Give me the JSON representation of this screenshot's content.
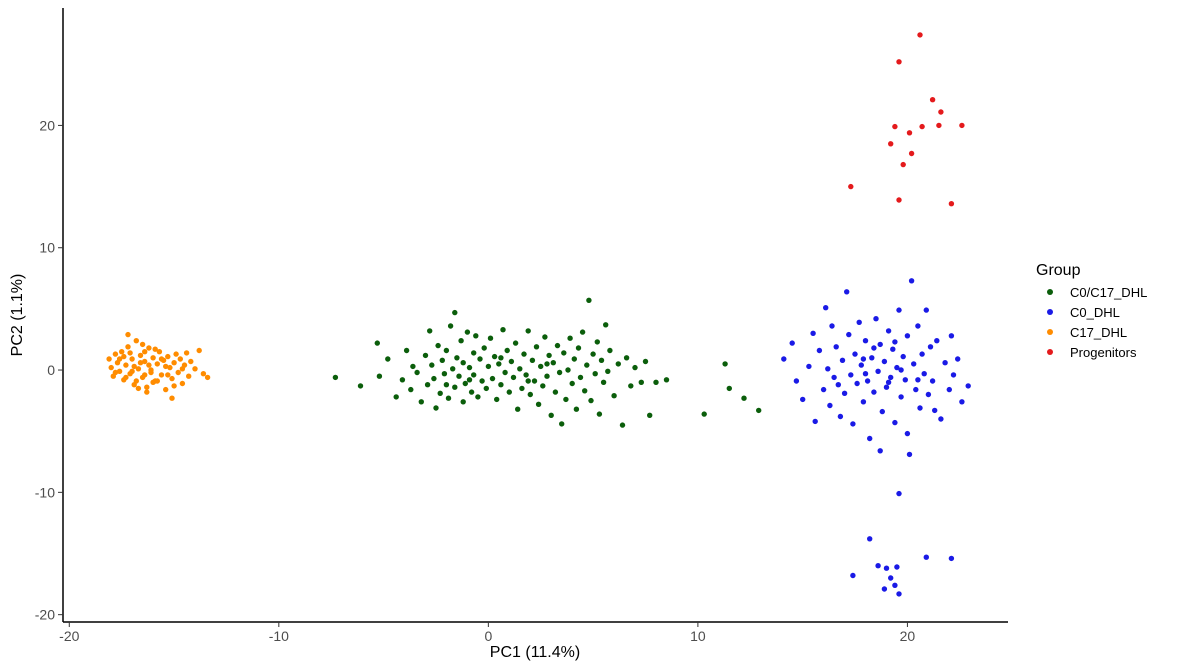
{
  "chart_data": {
    "type": "scatter",
    "xlabel": "PC1 (11.4%)",
    "ylabel": "PC2 (1.1%)",
    "xlim": [
      -20.3,
      24.8
    ],
    "ylim": [
      -20.6,
      29.6
    ],
    "xticks": [
      -20,
      -10,
      0,
      10,
      20
    ],
    "yticks": [
      -20,
      -10,
      0,
      10,
      20
    ],
    "grid": false,
    "legend": {
      "title": "Group",
      "placement": "right",
      "entries": [
        "C0/C17_DHL",
        "C0_DHL",
        "C17_DHL",
        "Progenitors"
      ]
    },
    "series": [
      {
        "name": "C0/C17_DHL",
        "color": "#0b5e0b",
        "points": [
          [
            -7.3,
            -0.6
          ],
          [
            -6.1,
            -1.3
          ],
          [
            -5.3,
            2.2
          ],
          [
            -5.2,
            -0.5
          ],
          [
            -4.8,
            0.9
          ],
          [
            -4.4,
            -2.2
          ],
          [
            -4.1,
            -0.8
          ],
          [
            -3.9,
            1.6
          ],
          [
            -3.7,
            -1.6
          ],
          [
            -3.6,
            0.3
          ],
          [
            -3.4,
            -0.2
          ],
          [
            -3.2,
            -2.6
          ],
          [
            -3.0,
            1.2
          ],
          [
            -2.9,
            -1.2
          ],
          [
            -2.8,
            3.2
          ],
          [
            -2.7,
            0.4
          ],
          [
            -2.6,
            -0.7
          ],
          [
            -2.5,
            -3.1
          ],
          [
            -2.4,
            2.0
          ],
          [
            -2.3,
            -1.9
          ],
          [
            -2.2,
            0.8
          ],
          [
            -2.1,
            -0.3
          ],
          [
            -2.0,
            1.6
          ],
          [
            -1.9,
            -2.3
          ],
          [
            -1.8,
            3.6
          ],
          [
            -1.7,
            0.1
          ],
          [
            -1.6,
            -1.4
          ],
          [
            -1.6,
            4.7
          ],
          [
            -1.5,
            1.0
          ],
          [
            -1.4,
            -0.5
          ],
          [
            -1.3,
            2.4
          ],
          [
            -1.2,
            -2.6
          ],
          [
            -1.2,
            0.6
          ],
          [
            -1.1,
            -1.1
          ],
          [
            -1.0,
            3.1
          ],
          [
            -0.9,
            0.2
          ],
          [
            -0.8,
            -1.8
          ],
          [
            -0.7,
            1.4
          ],
          [
            -0.7,
            -0.4
          ],
          [
            -0.6,
            2.8
          ],
          [
            -0.5,
            -2.2
          ],
          [
            -0.4,
            0.9
          ],
          [
            -0.3,
            -0.9
          ],
          [
            -0.2,
            1.8
          ],
          [
            -0.1,
            -1.5
          ],
          [
            0.0,
            0.3
          ],
          [
            0.1,
            2.6
          ],
          [
            0.2,
            -0.7
          ],
          [
            0.3,
            1.1
          ],
          [
            0.4,
            -2.4
          ],
          [
            0.5,
            0.5
          ],
          [
            0.6,
            -1.2
          ],
          [
            0.7,
            3.3
          ],
          [
            0.8,
            -0.2
          ],
          [
            0.9,
            1.6
          ],
          [
            1.0,
            -1.8
          ],
          [
            1.1,
            0.7
          ],
          [
            1.2,
            -0.6
          ],
          [
            1.3,
            2.2
          ],
          [
            1.4,
            -3.2
          ],
          [
            1.5,
            0.1
          ],
          [
            1.6,
            -1.5
          ],
          [
            1.7,
            1.3
          ],
          [
            1.8,
            -0.4
          ],
          [
            1.9,
            3.2
          ],
          [
            2.0,
            -2.0
          ],
          [
            2.1,
            0.8
          ],
          [
            2.2,
            -0.9
          ],
          [
            2.3,
            1.9
          ],
          [
            2.4,
            -2.8
          ],
          [
            2.5,
            0.3
          ],
          [
            2.6,
            -1.3
          ],
          [
            2.7,
            2.7
          ],
          [
            2.8,
            -0.5
          ],
          [
            2.9,
            1.2
          ],
          [
            3.0,
            -3.7
          ],
          [
            3.1,
            0.6
          ],
          [
            3.2,
            -1.8
          ],
          [
            3.3,
            2.0
          ],
          [
            3.4,
            -0.2
          ],
          [
            3.5,
            -4.4
          ],
          [
            3.6,
            1.4
          ],
          [
            3.7,
            -2.4
          ],
          [
            3.8,
            0.0
          ],
          [
            3.9,
            2.6
          ],
          [
            4.0,
            -1.1
          ],
          [
            4.1,
            0.9
          ],
          [
            4.2,
            -3.2
          ],
          [
            4.3,
            1.8
          ],
          [
            4.4,
            -0.6
          ],
          [
            4.5,
            3.1
          ],
          [
            4.6,
            -1.7
          ],
          [
            4.7,
            0.4
          ],
          [
            4.8,
            5.7
          ],
          [
            4.9,
            -2.5
          ],
          [
            5.0,
            1.3
          ],
          [
            5.1,
            -0.3
          ],
          [
            5.2,
            2.3
          ],
          [
            5.3,
            -3.6
          ],
          [
            5.4,
            0.8
          ],
          [
            5.5,
            -1.0
          ],
          [
            5.6,
            3.7
          ],
          [
            5.7,
            -0.1
          ],
          [
            5.8,
            1.6
          ],
          [
            6.0,
            -2.1
          ],
          [
            6.2,
            0.5
          ],
          [
            6.4,
            -4.5
          ],
          [
            6.6,
            1.0
          ],
          [
            6.8,
            -1.3
          ],
          [
            7.0,
            0.2
          ],
          [
            7.3,
            -1.0
          ],
          [
            7.5,
            0.7
          ],
          [
            7.7,
            -3.7
          ],
          [
            8.0,
            -1.0
          ],
          [
            8.5,
            -0.8
          ],
          [
            10.3,
            -3.6
          ],
          [
            11.3,
            0.5
          ],
          [
            11.5,
            -1.5
          ],
          [
            12.2,
            -2.3
          ],
          [
            12.9,
            -3.3
          ],
          [
            -0.9,
            -0.8
          ],
          [
            0.6,
            1.0
          ],
          [
            1.9,
            -0.9
          ],
          [
            2.8,
            0.5
          ],
          [
            -2.0,
            -1.2
          ]
        ]
      },
      {
        "name": "C0_DHL",
        "color": "#1a1ae6",
        "points": [
          [
            14.1,
            0.9
          ],
          [
            14.5,
            2.2
          ],
          [
            14.7,
            -0.9
          ],
          [
            15.0,
            -2.4
          ],
          [
            15.3,
            0.3
          ],
          [
            15.5,
            3.0
          ],
          [
            15.6,
            -4.2
          ],
          [
            15.8,
            1.6
          ],
          [
            16.0,
            -1.6
          ],
          [
            16.1,
            5.1
          ],
          [
            16.2,
            0.1
          ],
          [
            16.3,
            -2.9
          ],
          [
            16.4,
            3.6
          ],
          [
            16.5,
            -0.6
          ],
          [
            16.6,
            1.9
          ],
          [
            16.8,
            -3.8
          ],
          [
            16.9,
            0.8
          ],
          [
            17.0,
            -1.9
          ],
          [
            17.1,
            6.4
          ],
          [
            17.2,
            2.9
          ],
          [
            17.3,
            -0.4
          ],
          [
            17.4,
            -4.4
          ],
          [
            17.5,
            1.3
          ],
          [
            17.6,
            -1.1
          ],
          [
            17.7,
            3.9
          ],
          [
            17.8,
            0.4
          ],
          [
            17.9,
            -2.6
          ],
          [
            18.0,
            2.4
          ],
          [
            18.1,
            -0.9
          ],
          [
            18.2,
            -5.6
          ],
          [
            18.3,
            1.0
          ],
          [
            18.4,
            -1.8
          ],
          [
            18.5,
            4.2
          ],
          [
            18.6,
            -0.1
          ],
          [
            18.7,
            2.1
          ],
          [
            18.8,
            -3.4
          ],
          [
            18.9,
            0.7
          ],
          [
            19.0,
            -1.4
          ],
          [
            19.1,
            3.2
          ],
          [
            19.2,
            -0.6
          ],
          [
            19.3,
            1.7
          ],
          [
            19.4,
            -4.3
          ],
          [
            19.5,
            0.2
          ],
          [
            19.6,
            4.9
          ],
          [
            19.7,
            -2.2
          ],
          [
            19.8,
            1.1
          ],
          [
            19.9,
            -0.8
          ],
          [
            20.0,
            2.8
          ],
          [
            20.1,
            -6.9
          ],
          [
            20.2,
            7.3
          ],
          [
            20.3,
            0.5
          ],
          [
            20.4,
            -1.6
          ],
          [
            20.5,
            3.6
          ],
          [
            20.6,
            -3.1
          ],
          [
            20.7,
            1.3
          ],
          [
            20.8,
            -0.3
          ],
          [
            20.9,
            4.9
          ],
          [
            21.0,
            -2.0
          ],
          [
            21.1,
            1.9
          ],
          [
            21.2,
            -0.9
          ],
          [
            21.4,
            2.4
          ],
          [
            21.6,
            -4.0
          ],
          [
            21.8,
            0.6
          ],
          [
            22.0,
            -1.6
          ],
          [
            22.1,
            2.8
          ],
          [
            22.2,
            -0.4
          ],
          [
            22.4,
            0.9
          ],
          [
            22.6,
            -2.6
          ],
          [
            22.9,
            -1.3
          ],
          [
            18.7,
            -6.6
          ],
          [
            19.1,
            -1.0
          ],
          [
            18.4,
            1.8
          ],
          [
            19.7,
            0.0
          ],
          [
            20.5,
            -0.8
          ],
          [
            17.9,
            0.9
          ],
          [
            20.0,
            -5.2
          ],
          [
            21.3,
            -3.3
          ],
          [
            16.7,
            -1.2
          ],
          [
            19.4,
            2.3
          ],
          [
            18.0,
            -0.3
          ],
          [
            19.6,
            -10.1
          ],
          [
            18.2,
            -13.8
          ],
          [
            18.6,
            -16.0
          ],
          [
            17.4,
            -16.8
          ],
          [
            19.0,
            -16.2
          ],
          [
            19.5,
            -16.1
          ],
          [
            19.2,
            -17.0
          ],
          [
            19.4,
            -17.6
          ],
          [
            18.9,
            -17.9
          ],
          [
            19.6,
            -18.3
          ],
          [
            20.9,
            -15.3
          ],
          [
            22.1,
            -15.4
          ]
        ]
      },
      {
        "name": "C17_DHL",
        "color": "#ff8c00",
        "points": [
          [
            -18.1,
            0.9
          ],
          [
            -18.0,
            0.2
          ],
          [
            -17.9,
            -0.5
          ],
          [
            -17.8,
            1.3
          ],
          [
            -17.7,
            0.6
          ],
          [
            -17.6,
            -0.1
          ],
          [
            -17.5,
            1.5
          ],
          [
            -17.4,
            -0.8
          ],
          [
            -17.3,
            0.4
          ],
          [
            -17.2,
            1.9
          ],
          [
            -17.1,
            -0.3
          ],
          [
            -17.0,
            0.9
          ],
          [
            -16.9,
            -1.2
          ],
          [
            -16.8,
            2.4
          ],
          [
            -16.7,
            0.1
          ],
          [
            -16.6,
            1.2
          ],
          [
            -16.5,
            -0.6
          ],
          [
            -16.4,
            0.7
          ],
          [
            -16.3,
            -1.4
          ],
          [
            -16.2,
            1.8
          ],
          [
            -16.1,
            0.0
          ],
          [
            -16.0,
            1.0
          ],
          [
            -15.9,
            -0.9
          ],
          [
            -15.8,
            0.5
          ],
          [
            -15.7,
            1.5
          ],
          [
            -15.6,
            -0.4
          ],
          [
            -15.5,
            0.8
          ],
          [
            -15.4,
            -1.6
          ],
          [
            -15.3,
            1.1
          ],
          [
            -15.2,
            0.2
          ],
          [
            -15.1,
            -0.7
          ],
          [
            -15.0,
            0.6
          ],
          [
            -14.9,
            1.3
          ],
          [
            -14.8,
            -0.2
          ],
          [
            -14.7,
            0.9
          ],
          [
            -14.6,
            -1.1
          ],
          [
            -14.5,
            0.4
          ],
          [
            -14.4,
            1.4
          ],
          [
            -14.3,
            -0.5
          ],
          [
            -14.2,
            0.7
          ],
          [
            -14.0,
            0.1
          ],
          [
            -13.8,
            1.6
          ],
          [
            -13.6,
            -0.3
          ],
          [
            -13.4,
            -0.6
          ],
          [
            -17.2,
            2.9
          ],
          [
            -16.3,
            -1.8
          ],
          [
            -15.1,
            -2.3
          ],
          [
            -16.7,
            -1.5
          ],
          [
            -17.6,
            0.9
          ],
          [
            -16.9,
            0.3
          ],
          [
            -16.1,
            -0.2
          ],
          [
            -15.6,
            0.9
          ],
          [
            -17.3,
            -0.6
          ],
          [
            -16.4,
            1.5
          ],
          [
            -15.8,
            -0.9
          ],
          [
            -16.6,
            0.6
          ],
          [
            -17.0,
            -0.1
          ],
          [
            -16.2,
            0.4
          ],
          [
            -15.3,
            -0.4
          ],
          [
            -17.8,
            -0.2
          ],
          [
            -16.8,
            -0.9
          ],
          [
            -15.9,
            1.7
          ],
          [
            -16.5,
            2.1
          ],
          [
            -17.4,
            1.1
          ],
          [
            -14.6,
            0.1
          ],
          [
            -15.0,
            -1.3
          ],
          [
            -16.0,
            -1.0
          ],
          [
            -16.4,
            -0.4
          ],
          [
            -17.1,
            1.4
          ],
          [
            -15.4,
            0.3
          ]
        ]
      },
      {
        "name": "Progenitors",
        "color": "#e41a1c",
        "points": [
          [
            20.6,
            27.4
          ],
          [
            19.6,
            25.2
          ],
          [
            21.2,
            22.1
          ],
          [
            21.6,
            21.1
          ],
          [
            22.6,
            20.0
          ],
          [
            21.5,
            20.0
          ],
          [
            20.7,
            19.9
          ],
          [
            19.4,
            19.9
          ],
          [
            20.1,
            19.4
          ],
          [
            19.2,
            18.5
          ],
          [
            20.2,
            17.7
          ],
          [
            19.8,
            16.8
          ],
          [
            17.3,
            15.0
          ],
          [
            19.6,
            13.9
          ],
          [
            22.1,
            13.6
          ]
        ]
      }
    ]
  }
}
